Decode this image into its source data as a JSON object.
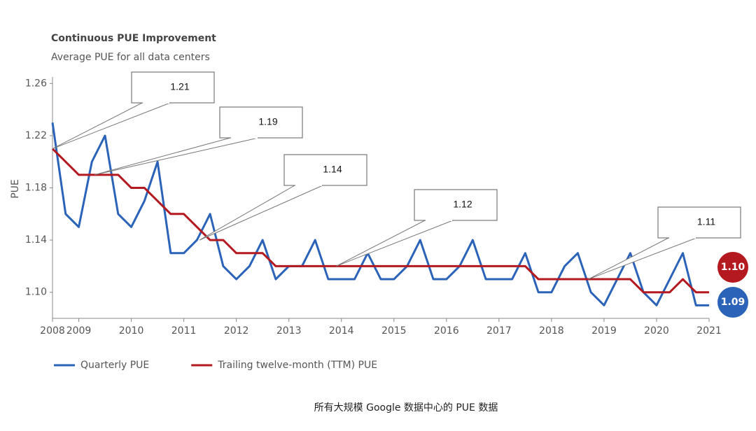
{
  "chart_data": {
    "type": "line",
    "title": "Continuous PUE Improvement",
    "subtitle": "Average PUE for all data centers",
    "y_label": "PUE",
    "caption": "所有大规模 Google 数据中心的 PUE 数据",
    "x": [
      2008.5,
      2008.75,
      2009,
      2009.25,
      2009.5,
      2009.75,
      2010,
      2010.25,
      2010.5,
      2010.75,
      2011,
      2011.25,
      2011.5,
      2011.75,
      2012,
      2012.25,
      2012.5,
      2012.75,
      2013,
      2013.25,
      2013.5,
      2013.75,
      2014,
      2014.25,
      2014.5,
      2014.75,
      2015,
      2015.25,
      2015.5,
      2015.75,
      2016,
      2016.25,
      2016.5,
      2016.75,
      2017,
      2017.25,
      2017.5,
      2017.75,
      2018,
      2018.25,
      2018.5,
      2018.75,
      2019,
      2019.25,
      2019.5,
      2019.75,
      2020,
      2020.25,
      2020.5,
      2020.75,
      2021
    ],
    "series": [
      {
        "name": "Quarterly PUE",
        "color": "#2a63b8",
        "values": [
          1.23,
          1.16,
          1.15,
          1.2,
          1.22,
          1.16,
          1.15,
          1.17,
          1.2,
          1.13,
          1.13,
          1.14,
          1.16,
          1.12,
          1.11,
          1.12,
          1.14,
          1.11,
          1.12,
          1.12,
          1.14,
          1.11,
          1.11,
          1.11,
          1.13,
          1.11,
          1.11,
          1.12,
          1.14,
          1.11,
          1.11,
          1.12,
          1.14,
          1.11,
          1.11,
          1.11,
          1.13,
          1.1,
          1.1,
          1.12,
          1.13,
          1.1,
          1.09,
          1.11,
          1.13,
          1.1,
          1.09,
          1.11,
          1.13,
          1.09,
          1.09
        ],
        "value_labels": [
          null,
          null,
          null,
          null,
          null,
          null,
          null,
          null,
          null,
          null,
          null,
          null,
          null,
          null,
          null,
          null,
          null,
          null,
          null,
          null,
          null,
          null,
          null,
          null,
          null,
          null,
          null,
          null,
          null,
          null,
          null,
          null,
          null,
          null,
          null,
          null,
          null,
          null,
          null,
          null,
          null,
          null,
          null,
          null,
          null,
          null,
          null,
          null,
          null,
          null,
          "1.09"
        ]
      },
      {
        "name": "Trailing twelve-month (TTM) PUE",
        "color": "#b3191e",
        "values": [
          1.21,
          1.2,
          1.19,
          1.19,
          1.19,
          1.19,
          1.18,
          1.18,
          1.17,
          1.16,
          1.16,
          1.15,
          1.14,
          1.14,
          1.13,
          1.13,
          1.13,
          1.12,
          1.12,
          1.12,
          1.12,
          1.12,
          1.12,
          1.12,
          1.12,
          1.12,
          1.12,
          1.12,
          1.12,
          1.12,
          1.12,
          1.12,
          1.12,
          1.12,
          1.12,
          1.12,
          1.12,
          1.11,
          1.11,
          1.11,
          1.11,
          1.11,
          1.11,
          1.11,
          1.11,
          1.1,
          1.1,
          1.1,
          1.11,
          1.1,
          1.1
        ],
        "value_labels": [
          null,
          null,
          null,
          null,
          null,
          null,
          null,
          null,
          null,
          null,
          null,
          null,
          null,
          null,
          null,
          null,
          null,
          null,
          null,
          null,
          null,
          null,
          null,
          null,
          null,
          null,
          null,
          null,
          null,
          null,
          null,
          null,
          null,
          null,
          null,
          null,
          null,
          null,
          null,
          null,
          null,
          null,
          null,
          null,
          null,
          null,
          null,
          null,
          null,
          null,
          "1.10"
        ]
      }
    ],
    "xlim": [
      2008.5,
      2021
    ],
    "xticks": [
      {
        "value": 2008.5,
        "label": "2008"
      },
      2009,
      2010,
      2011,
      2012,
      2013,
      2014,
      2015,
      2016,
      2017,
      2018,
      2019,
      2020,
      2021
    ],
    "ylim": [
      1.08,
      1.265
    ],
    "yticks": [
      {
        "value": 1.1,
        "label": "1.10"
      },
      1.14,
      1.18,
      1.22,
      1.26
    ],
    "annotations": [
      {
        "label": "1.21",
        "x": 2008.5,
        "y": 1.21
      },
      {
        "label": "1.19",
        "x": 2009.3,
        "y": 1.19
      },
      {
        "label": "1.14",
        "x": 2011.3,
        "y": 1.14
      },
      {
        "label": "1.12",
        "x": 2013.9,
        "y": 1.12
      },
      {
        "label": "1.11",
        "x": 2018.7,
        "y": 1.11
      }
    ],
    "legend": "bottom-left"
  }
}
